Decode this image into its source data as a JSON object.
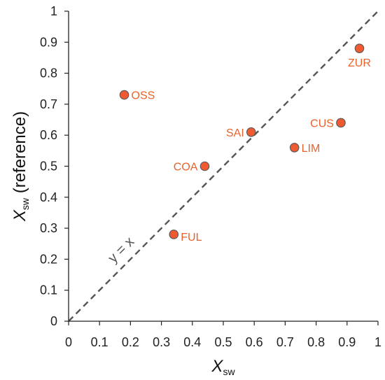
{
  "chart_data": {
    "type": "scatter",
    "title": "",
    "xlabel": {
      "main": "X",
      "sub": "sw",
      "suffix": ""
    },
    "ylabel": {
      "main": "X",
      "sub": "sw",
      "suffix": " (reference)"
    },
    "xlim": [
      0,
      1
    ],
    "ylim": [
      0,
      1
    ],
    "xticks": [
      "0",
      "0.1",
      "0.2",
      "0.3",
      "0.4",
      "0.5",
      "0.6",
      "0.7",
      "0.8",
      "0.9",
      "1"
    ],
    "yticks": [
      "0",
      "0.1",
      "0.2",
      "0.3",
      "0.4",
      "0.5",
      "0.6",
      "0.7",
      "0.8",
      "0.9",
      "1"
    ],
    "grid": false,
    "points": [
      {
        "label": "OSS",
        "x": 0.18,
        "y": 0.73
      },
      {
        "label": "ZUR",
        "x": 0.94,
        "y": 0.88
      },
      {
        "label": "SAI",
        "x": 0.59,
        "y": 0.61
      },
      {
        "label": "CUS",
        "x": 0.88,
        "y": 0.64
      },
      {
        "label": "LIM",
        "x": 0.73,
        "y": 0.56
      },
      {
        "label": "COA",
        "x": 0.44,
        "y": 0.5
      },
      {
        "label": "FUL",
        "x": 0.34,
        "y": 0.28
      }
    ],
    "reference_line": {
      "label": "y = x",
      "style": "dashed"
    },
    "colors": {
      "point_fill": "#f05a30",
      "point_stroke": "#5a5a5a",
      "point_label": "#e8632c",
      "reference_line": "#555555",
      "axis": "#222222"
    }
  }
}
